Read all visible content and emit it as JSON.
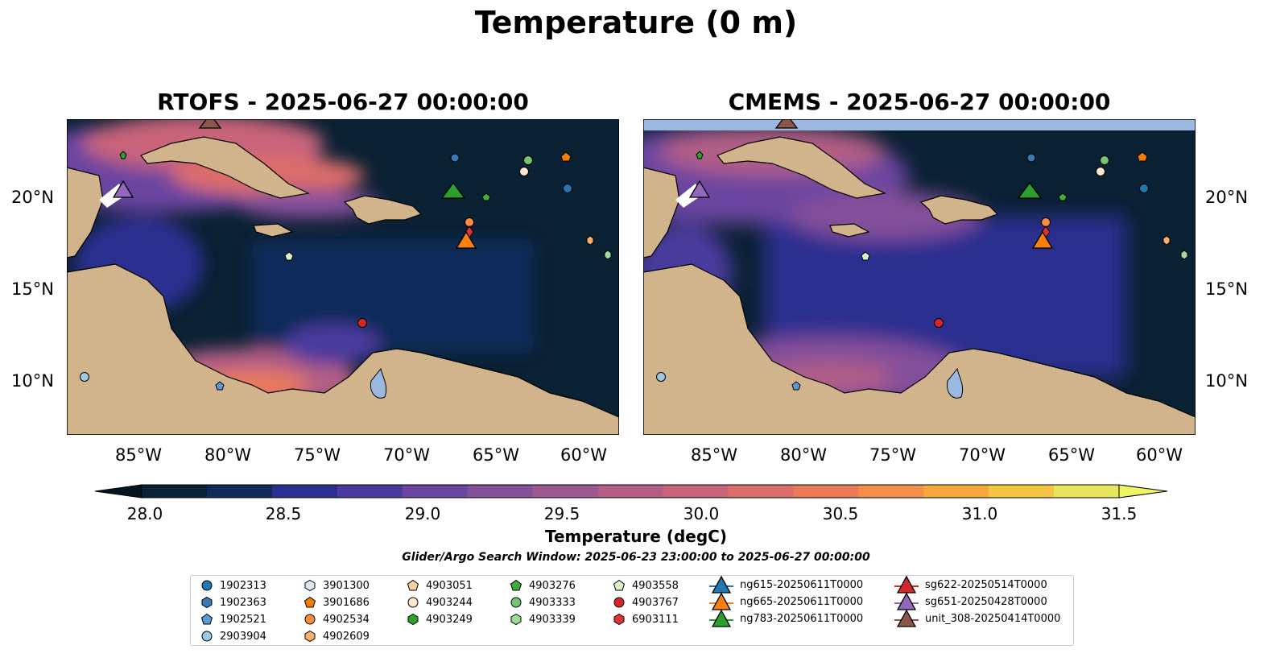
{
  "figure": {
    "title": "Temperature (0 m)",
    "panels": [
      {
        "title": "RTOFS - 2025-06-27 00:00:00"
      },
      {
        "title": "CMEMS - 2025-06-27 00:00:00"
      }
    ],
    "lat_ticks": [
      "20°N",
      "15°N",
      "10°N"
    ],
    "lon_ticks": [
      "85°W",
      "80°W",
      "75°W",
      "70°W",
      "65°W",
      "60°W"
    ]
  },
  "colorbar": {
    "ticks": [
      "28.0",
      "28.5",
      "29.0",
      "29.5",
      "30.0",
      "30.5",
      "31.0",
      "31.5"
    ],
    "label": "Temperature (degC)",
    "colors": [
      "#0a2033",
      "#102a5a",
      "#2a2f8f",
      "#4a3a9e",
      "#6a45a0",
      "#84509a",
      "#9c5890",
      "#b35e85",
      "#c8647a",
      "#db6d6a",
      "#ea7a58",
      "#f38f48",
      "#f7a83c",
      "#f5c443",
      "#e8e45e"
    ]
  },
  "search_window": "Glider/Argo Search Window: 2025-06-23 23:00:00 to 2025-06-27 00:00:00",
  "legend": {
    "columns": [
      [
        {
          "label": "1902313",
          "shape": "circle",
          "color": "#1f77b4"
        },
        {
          "label": "1902363",
          "shape": "hexagon",
          "color": "#3a78b8"
        },
        {
          "label": "1902521",
          "shape": "pentagon",
          "color": "#5a9bd4"
        },
        {
          "label": "2903904",
          "shape": "circle",
          "color": "#9ecae1"
        }
      ],
      [
        {
          "label": "3901300",
          "shape": "hexagon",
          "color": "#dbe9f6"
        },
        {
          "label": "3901686",
          "shape": "pentagon",
          "color": "#f57c00"
        },
        {
          "label": "4902534",
          "shape": "circle",
          "color": "#fd8d3c"
        },
        {
          "label": "4902609",
          "shape": "hexagon",
          "color": "#fdae6b"
        }
      ],
      [
        {
          "label": "4903051",
          "shape": "pentagon",
          "color": "#fdd0a2"
        },
        {
          "label": "4903244",
          "shape": "circle",
          "color": "#fee6ce"
        },
        {
          "label": "4903249",
          "shape": "hexagon",
          "color": "#2ca02c"
        }
      ],
      [
        {
          "label": "4903276",
          "shape": "pentagon",
          "color": "#41ab3d"
        },
        {
          "label": "4903333",
          "shape": "circle",
          "color": "#74c476"
        },
        {
          "label": "4903339",
          "shape": "hexagon",
          "color": "#a1d99b"
        }
      ],
      [
        {
          "label": "4903558",
          "shape": "pentagon",
          "color": "#d9f0c8"
        },
        {
          "label": "4903767",
          "shape": "circle",
          "color": "#d62728"
        },
        {
          "label": "6903111",
          "shape": "hexagon",
          "color": "#e0303a"
        }
      ],
      [
        {
          "label": "ng615-20250611T0000",
          "shape": "triangle",
          "color": "#1f77b4"
        },
        {
          "label": "ng665-20250611T0000",
          "shape": "triangle",
          "color": "#ff7f0e"
        },
        {
          "label": "ng783-20250611T0000",
          "shape": "triangle",
          "color": "#2ca02c"
        }
      ],
      [
        {
          "label": "sg622-20250514T0000",
          "shape": "triangle",
          "color": "#d62728"
        },
        {
          "label": "sg651-20250428T0000",
          "shape": "triangle",
          "color": "#9467bd"
        },
        {
          "label": "unit_308-20250414T0000",
          "shape": "triangle",
          "color": "#8c564b"
        }
      ]
    ]
  },
  "colors": {
    "land": "#d2b48c",
    "lake": "#9ab8e0",
    "ocean_cold": "#0a2033"
  }
}
